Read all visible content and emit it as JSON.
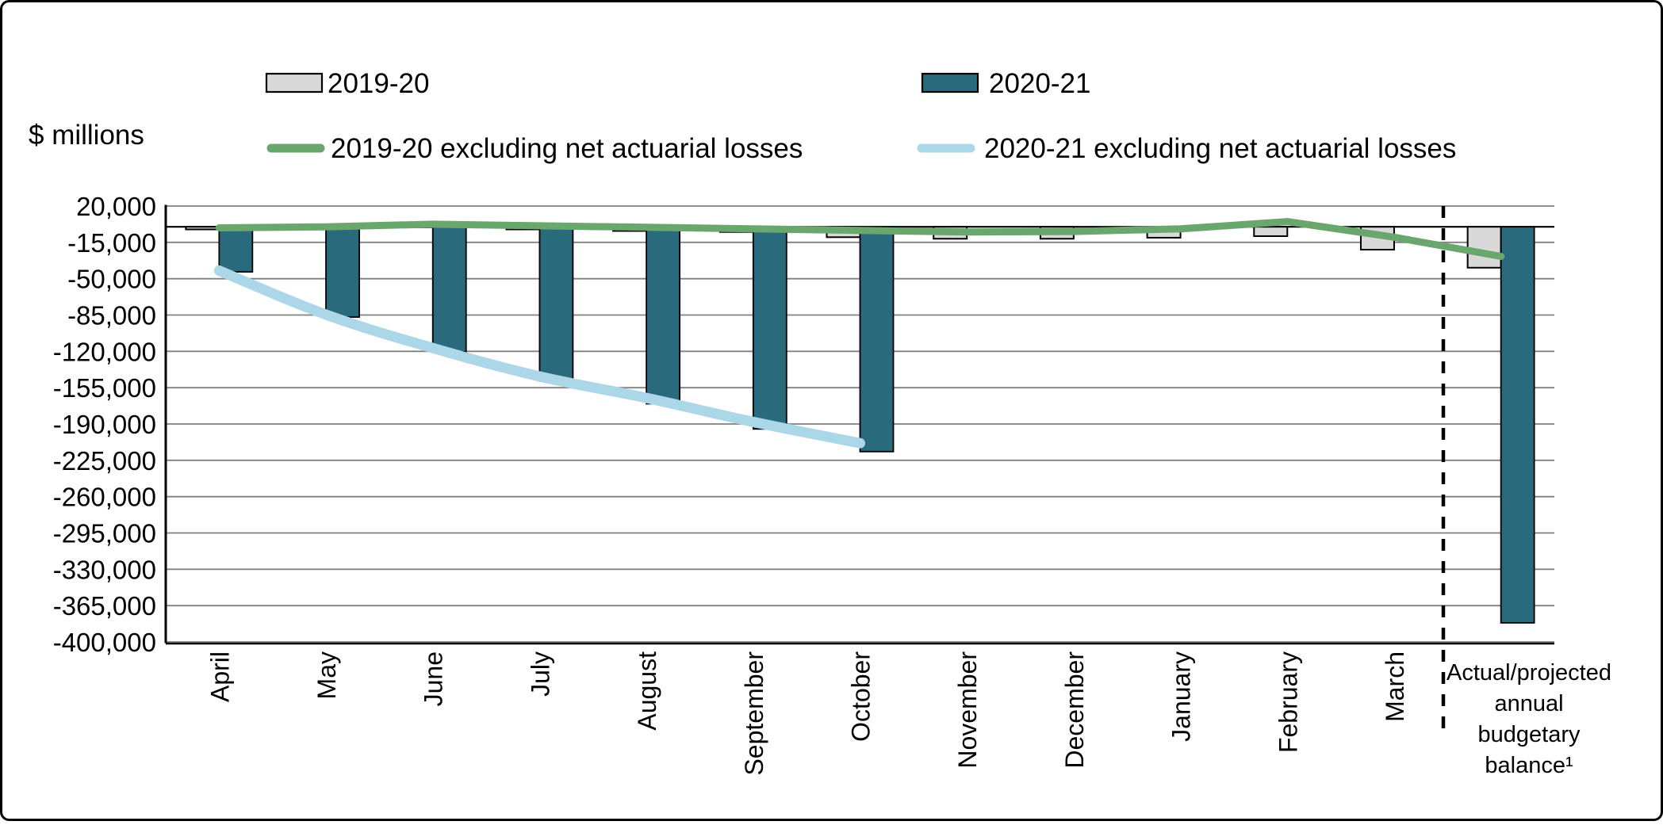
{
  "figure": {
    "y_axis_title": "$ millions"
  },
  "legend": [
    {
      "label": "2019-20",
      "type": "bar",
      "color": "#d9d9d9"
    },
    {
      "label": "2020-21",
      "type": "bar",
      "color": "#2a6a7d"
    },
    {
      "label": "2019-20 excluding net actuarial losses",
      "type": "line",
      "color": "#6aa76d"
    },
    {
      "label": "2020-21 excluding net actuarial losses",
      "type": "line",
      "color": "#abd7e8"
    }
  ],
  "chart_data": {
    "type": "bar+line combo (monthly fiscal balances)",
    "ylabel": "$ millions",
    "ylim": [
      -400000,
      20000
    ],
    "ytick_step": 35000,
    "grid": true,
    "legend_position": "top",
    "y_ticks": [
      "20,000",
      "-15,000",
      "-50,000",
      "-85,000",
      "-120,000",
      "-155,000",
      "-190,000",
      "-225,000",
      "-260,000",
      "-295,000",
      "-330,000",
      "-365,000",
      "-400,000"
    ],
    "categories": [
      "April",
      "May",
      "June",
      "July",
      "August",
      "September",
      "October",
      "November",
      "December",
      "January",
      "February",
      "March",
      "Actual/projected annual budgetary balance¹"
    ],
    "final_category_lines": [
      "Actual/projected",
      "annual",
      "budgetary",
      "balance¹"
    ],
    "separator_dashed_line_before_last_category": true,
    "series": [
      {
        "name": "2019-20",
        "type": "bar",
        "color": "#d9d9d9",
        "values": [
          -2500,
          -1000,
          -500,
          -2500,
          -4000,
          -5000,
          -10000,
          -11500,
          -11500,
          -10500,
          -9000,
          -22000,
          -39400
        ]
      },
      {
        "name": "2020-21",
        "type": "bar",
        "color": "#2a6a7d",
        "values": [
          -43400,
          -87000,
          -120400,
          -148600,
          -170500,
          -194800,
          -216600,
          null,
          null,
          null,
          null,
          null,
          -381600
        ]
      },
      {
        "name": "2019-20 excluding net actuarial losses",
        "type": "line",
        "color": "#6aa76d",
        "smooth": false,
        "values": [
          -1000,
          0,
          2500,
          1000,
          -500,
          -2000,
          -3500,
          -5000,
          -4500,
          -2000,
          5000,
          -10000,
          -28500
        ]
      },
      {
        "name": "2020-21 excluding net actuarial losses",
        "type": "line",
        "color": "#abd7e8",
        "smooth": true,
        "values": [
          -42200,
          -84600,
          -116800,
          -144200,
          -164900,
          -188000,
          -208500,
          null,
          null,
          null,
          null,
          null,
          null
        ]
      }
    ]
  }
}
